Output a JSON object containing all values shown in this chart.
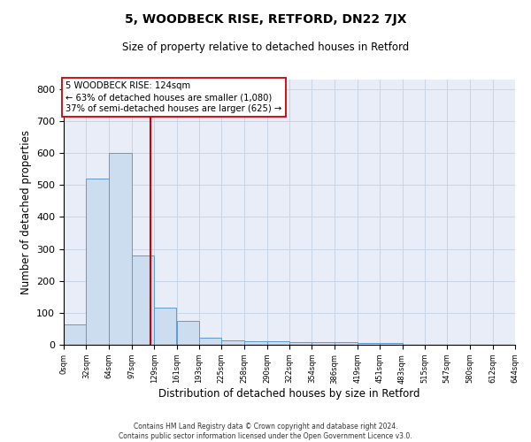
{
  "title": "5, WOODBECK RISE, RETFORD, DN22 7JX",
  "subtitle": "Size of property relative to detached houses in Retford",
  "xlabel": "Distribution of detached houses by size in Retford",
  "ylabel": "Number of detached properties",
  "footer_line1": "Contains HM Land Registry data © Crown copyright and database right 2024.",
  "footer_line2": "Contains public sector information licensed under the Open Government Licence v3.0.",
  "bar_edges": [
    0,
    32,
    64,
    97,
    129,
    161,
    193,
    225,
    258,
    290,
    322,
    354,
    386,
    419,
    451,
    483,
    515,
    547,
    580,
    612,
    644
  ],
  "bar_heights": [
    65,
    520,
    600,
    280,
    115,
    75,
    22,
    15,
    10,
    10,
    8,
    8,
    8,
    5,
    5,
    0,
    0,
    0,
    0,
    0
  ],
  "bar_color": "#ccddf0",
  "bar_edge_color": "#5b9bd5",
  "property_size": 124,
  "vline_color": "#cc0000",
  "annotation_line1": "5 WOODBECK RISE: 124sqm",
  "annotation_line2": "← 63% of detached houses are smaller (1,080)",
  "annotation_line3": "37% of semi-detached houses are larger (625) →",
  "ylim": [
    0,
    830
  ],
  "yticks": [
    0,
    100,
    200,
    300,
    400,
    500,
    600,
    700,
    800
  ],
  "grid_color": "#c8d4e8",
  "background_color": "#e8edf8",
  "tick_labels": [
    "0sqm",
    "32sqm",
    "64sqm",
    "97sqm",
    "129sqm",
    "161sqm",
    "193sqm",
    "225sqm",
    "258sqm",
    "290sqm",
    "322sqm",
    "354sqm",
    "386sqm",
    "419sqm",
    "451sqm",
    "483sqm",
    "515sqm",
    "547sqm",
    "580sqm",
    "612sqm",
    "644sqm"
  ]
}
